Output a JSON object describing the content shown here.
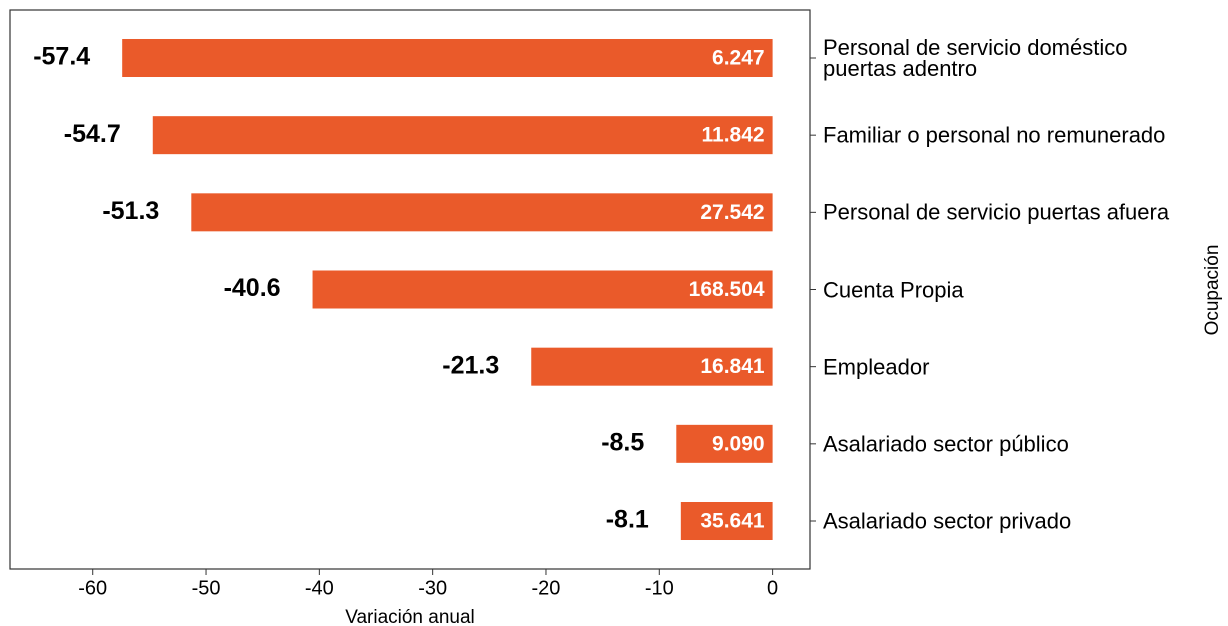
{
  "chart_data": {
    "type": "barh",
    "categories": [
      "Personal de servicio doméstico\npuertas adentro",
      "Familiar o personal no remunerado",
      "Personal de servicio puertas afuera",
      "Cuenta Propia",
      "Empleador",
      "Asalariado sector público",
      "Asalariado sector privado"
    ],
    "values": [
      -57.4,
      -54.7,
      -51.3,
      -40.6,
      -21.3,
      -8.5,
      -8.1
    ],
    "inner_labels": [
      "6.247",
      "11.842",
      "27.542",
      "168.504",
      "16.841",
      "9.090",
      "35.641"
    ],
    "color": "#ea5a2a",
    "xlim": [
      -67.3,
      3.3
    ],
    "xticks": [
      -60,
      -50,
      -40,
      -30,
      -20,
      -10,
      0
    ],
    "xlabel": "Variación anual",
    "ylabel": "Ocupación"
  }
}
